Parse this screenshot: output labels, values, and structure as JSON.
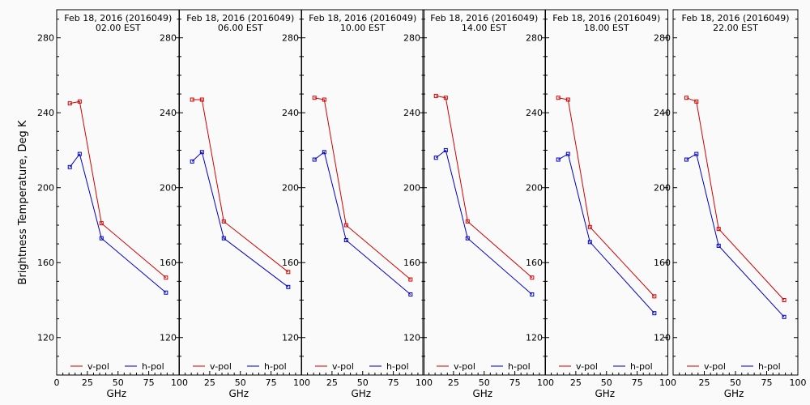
{
  "colors": {
    "vpol": "#d40000",
    "hpol": "#0000c8",
    "axis": "#000000",
    "background": "#fafafa"
  },
  "ylabel": "Brightness Temperature, Deg K",
  "xlabel": "GHz",
  "legend": {
    "vpol": "v-pol",
    "hpol": "h-pol"
  },
  "chart_data": [
    {
      "type": "line",
      "title": "Feb 18, 2016 (2016049)",
      "subtitle": "02.00 EST",
      "xlabel": "GHz",
      "ylabel": "Brightness Temperature, Deg K",
      "xlim": [
        0,
        100
      ],
      "ylim": [
        100,
        295
      ],
      "xticks": [
        0,
        25,
        50,
        75,
        100
      ],
      "yticks": [
        120,
        160,
        200,
        240,
        280
      ],
      "x": [
        10.7,
        18.7,
        36.5,
        89.0
      ],
      "series": [
        {
          "name": "v-pol",
          "values": [
            245,
            246,
            181,
            152
          ]
        },
        {
          "name": "h-pol",
          "values": [
            211,
            218,
            173,
            144
          ]
        }
      ]
    },
    {
      "type": "line",
      "title": "Feb 18, 2016 (2016049)",
      "subtitle": "06.00 EST",
      "xlabel": "GHz",
      "ylabel": "",
      "xlim": [
        0,
        100
      ],
      "ylim": [
        100,
        295
      ],
      "xticks": [
        0,
        25,
        50,
        75,
        100
      ],
      "yticks": [
        120,
        160,
        200,
        240,
        280
      ],
      "x": [
        10.7,
        18.7,
        36.5,
        89.0
      ],
      "series": [
        {
          "name": "v-pol",
          "values": [
            247,
            247,
            182,
            155
          ]
        },
        {
          "name": "h-pol",
          "values": [
            214,
            219,
            173,
            147
          ]
        }
      ]
    },
    {
      "type": "line",
      "title": "Feb 18, 2016 (2016049)",
      "subtitle": "10.00 EST",
      "xlabel": "GHz",
      "ylabel": "",
      "xlim": [
        0,
        100
      ],
      "ylim": [
        100,
        295
      ],
      "xticks": [
        0,
        25,
        50,
        75,
        100
      ],
      "yticks": [
        120,
        160,
        200,
        240,
        280
      ],
      "x": [
        10.7,
        18.7,
        36.5,
        89.0
      ],
      "series": [
        {
          "name": "v-pol",
          "values": [
            248,
            247,
            180,
            151
          ]
        },
        {
          "name": "h-pol",
          "values": [
            215,
            219,
            172,
            143
          ]
        }
      ]
    },
    {
      "type": "line",
      "title": "Feb 18, 2016 (2016049)",
      "subtitle": "14.00 EST",
      "xlabel": "GHz",
      "ylabel": "",
      "xlim": [
        0,
        100
      ],
      "ylim": [
        100,
        295
      ],
      "xticks": [
        0,
        25,
        50,
        75,
        100
      ],
      "yticks": [
        120,
        160,
        200,
        240,
        280
      ],
      "x": [
        10.7,
        18.7,
        36.5,
        89.0
      ],
      "series": [
        {
          "name": "v-pol",
          "values": [
            249,
            248,
            182,
            152
          ]
        },
        {
          "name": "h-pol",
          "values": [
            216,
            220,
            173,
            143
          ]
        }
      ]
    },
    {
      "type": "line",
      "title": "Feb 18, 2016 (2016049)",
      "subtitle": "18.00 EST",
      "xlabel": "GHz",
      "ylabel": "",
      "xlim": [
        0,
        100
      ],
      "ylim": [
        100,
        295
      ],
      "xticks": [
        0,
        25,
        50,
        75,
        100
      ],
      "yticks": [
        120,
        160,
        200,
        240,
        280
      ],
      "x": [
        10.7,
        18.7,
        36.5,
        89.0
      ],
      "series": [
        {
          "name": "v-pol",
          "values": [
            248,
            247,
            179,
            142
          ]
        },
        {
          "name": "h-pol",
          "values": [
            215,
            218,
            171,
            133
          ]
        }
      ]
    },
    {
      "type": "line",
      "title": "Feb 18, 2016 (2016049)",
      "subtitle": "22.00 EST",
      "xlabel": "GHz",
      "ylabel": "",
      "xlim": [
        0,
        100
      ],
      "ylim": [
        100,
        295
      ],
      "xticks": [
        0,
        25,
        50,
        75,
        100
      ],
      "yticks": [
        120,
        160,
        200,
        240,
        280
      ],
      "x": [
        10.7,
        18.7,
        36.5,
        89.0
      ],
      "series": [
        {
          "name": "v-pol",
          "values": [
            248,
            246,
            178,
            140
          ]
        },
        {
          "name": "h-pol",
          "values": [
            215,
            218,
            169,
            131
          ]
        }
      ]
    }
  ]
}
